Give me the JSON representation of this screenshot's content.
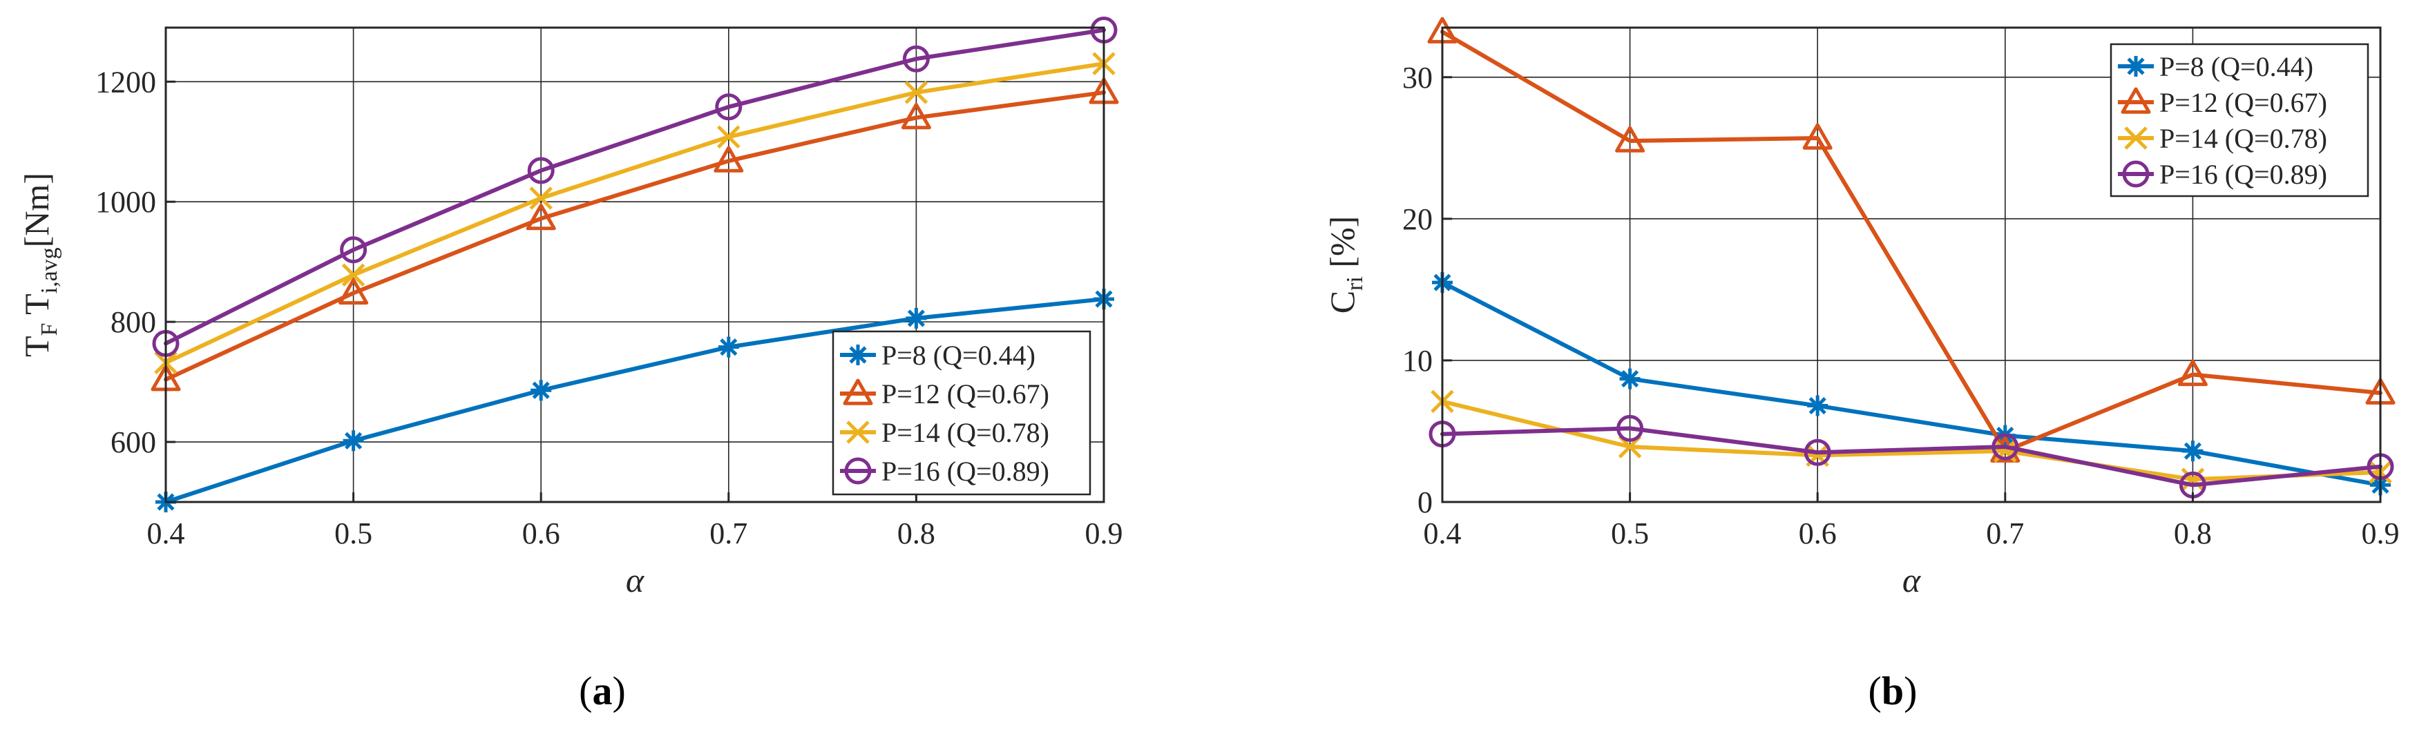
{
  "chart_data": [
    {
      "type": "line",
      "panel_label": "a",
      "caption_open": "(",
      "caption_close": ")",
      "xlabel": "α",
      "ylabel_parts": [
        "T",
        "F",
        " T",
        "i,avg",
        "[Nm]"
      ],
      "x": [
        0.4,
        0.5,
        0.6,
        0.7,
        0.8,
        0.9
      ],
      "x_tick_labels": [
        "0.4",
        "0.5",
        "0.6",
        "0.7",
        "0.8",
        "0.9"
      ],
      "xlim": [
        0.4,
        0.9
      ],
      "ylim": [
        500,
        1290
      ],
      "y_ticks": [
        600,
        800,
        1000,
        1200
      ],
      "y_tick_labels": [
        "600",
        "800",
        "1000",
        "1200"
      ],
      "grid": true,
      "legend_position": "lower-right",
      "series": [
        {
          "name": "P=8 (Q=0.44)",
          "color": "#0072BD",
          "marker": "asterisk",
          "values": [
            500,
            602,
            686,
            758,
            806,
            838
          ]
        },
        {
          "name": "P=12 (Q=0.67)",
          "color": "#D95319",
          "marker": "triangle",
          "values": [
            704,
            848,
            972,
            1068,
            1140,
            1182
          ]
        },
        {
          "name": "P=14 (Q=0.78)",
          "color": "#EDB120",
          "marker": "x",
          "values": [
            732,
            878,
            1006,
            1108,
            1182,
            1230
          ]
        },
        {
          "name": "P=16 (Q=0.89)",
          "color": "#7E2F8E",
          "marker": "circle",
          "values": [
            764,
            920,
            1052,
            1158,
            1238,
            1286
          ]
        }
      ]
    },
    {
      "type": "line",
      "panel_label": "b",
      "caption_open": "(",
      "caption_close": ")",
      "xlabel": "α",
      "ylabel_parts": [
        "C",
        "ri",
        " [%]"
      ],
      "x": [
        0.4,
        0.5,
        0.6,
        0.7,
        0.8,
        0.9
      ],
      "x_tick_labels": [
        "0.4",
        "0.5",
        "0.6",
        "0.7",
        "0.8",
        "0.9"
      ],
      "xlim": [
        0.4,
        0.9
      ],
      "ylim": [
        0,
        33.5
      ],
      "y_ticks": [
        0,
        10,
        20,
        30
      ],
      "y_tick_labels": [
        "0",
        "10",
        "20",
        "30"
      ],
      "grid": true,
      "legend_position": "top-right",
      "series": [
        {
          "name": "P=8 (Q=0.44)",
          "color": "#0072BD",
          "marker": "asterisk",
          "values": [
            15.5,
            8.7,
            6.8,
            4.7,
            3.6,
            1.2
          ]
        },
        {
          "name": "P=12 (Q=0.67)",
          "color": "#D95319",
          "marker": "triangle",
          "values": [
            33.2,
            25.5,
            25.7,
            3.6,
            9.0,
            7.7
          ]
        },
        {
          "name": "P=14 (Q=0.78)",
          "color": "#EDB120",
          "marker": "x",
          "values": [
            7.1,
            3.9,
            3.3,
            3.6,
            1.6,
            2.1
          ]
        },
        {
          "name": "P=16 (Q=0.89)",
          "color": "#7E2F8E",
          "marker": "circle",
          "values": [
            4.8,
            5.2,
            3.5,
            3.9,
            1.2,
            2.5
          ]
        }
      ]
    }
  ]
}
